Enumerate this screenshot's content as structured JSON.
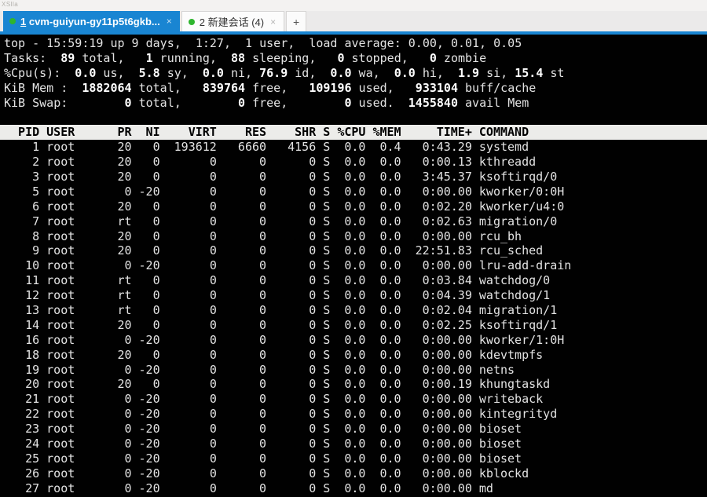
{
  "window": {
    "artifact_text": "XSlla"
  },
  "colors": {
    "tab_active_bg": "#1985d2",
    "accent_strip": "#1985d2",
    "session_status_dot": "#2eb52e",
    "terminal_bg": "#010101",
    "terminal_text": "#e3e3e3",
    "terminal_bold_text": "#ffffff",
    "table_header_bg": "#ececea"
  },
  "tabbar": {
    "tabs": [
      {
        "number": "1",
        "label": "cvm-guiyun-gy11p5t6gkb...",
        "close_icon": "×",
        "active": true
      },
      {
        "number": "2",
        "label": "新建会话 (4)",
        "close_icon": "×",
        "active": false
      }
    ],
    "new_tab_label": "+"
  },
  "terminal": {
    "summary_lines": [
      [
        {
          "t": "top - 15:59:19 up 9 days,  1:27,  1 user,  load average: 0.00, 0.01, 0.05",
          "b": false
        }
      ],
      [
        {
          "t": "Tasks: ",
          "b": false
        },
        {
          "t": " 89",
          "b": true
        },
        {
          "t": " total, ",
          "b": false
        },
        {
          "t": "  1",
          "b": true
        },
        {
          "t": " running, ",
          "b": false
        },
        {
          "t": " 88",
          "b": true
        },
        {
          "t": " sleeping, ",
          "b": false
        },
        {
          "t": "  0",
          "b": true
        },
        {
          "t": " stopped, ",
          "b": false
        },
        {
          "t": "  0",
          "b": true
        },
        {
          "t": " zombie",
          "b": false
        }
      ],
      [
        {
          "t": "%Cpu(s): ",
          "b": false
        },
        {
          "t": " 0.0",
          "b": true
        },
        {
          "t": " us, ",
          "b": false
        },
        {
          "t": " 5.8",
          "b": true
        },
        {
          "t": " sy, ",
          "b": false
        },
        {
          "t": " 0.0",
          "b": true
        },
        {
          "t": " ni, ",
          "b": false
        },
        {
          "t": "76.9",
          "b": true
        },
        {
          "t": " id, ",
          "b": false
        },
        {
          "t": " 0.0",
          "b": true
        },
        {
          "t": " wa, ",
          "b": false
        },
        {
          "t": " 0.0",
          "b": true
        },
        {
          "t": " hi, ",
          "b": false
        },
        {
          "t": " 1.9",
          "b": true
        },
        {
          "t": " si, ",
          "b": false
        },
        {
          "t": "15.4",
          "b": true
        },
        {
          "t": " st",
          "b": false
        }
      ],
      [
        {
          "t": "KiB Mem : ",
          "b": false
        },
        {
          "t": " 1882064",
          "b": true
        },
        {
          "t": " total, ",
          "b": false
        },
        {
          "t": "  839764",
          "b": true
        },
        {
          "t": " free, ",
          "b": false
        },
        {
          "t": "  109196",
          "b": true
        },
        {
          "t": " used, ",
          "b": false
        },
        {
          "t": "  933104",
          "b": true
        },
        {
          "t": " buff/cache",
          "b": false
        }
      ],
      [
        {
          "t": "KiB Swap: ",
          "b": false
        },
        {
          "t": "       0",
          "b": true
        },
        {
          "t": " total, ",
          "b": false
        },
        {
          "t": "       0",
          "b": true
        },
        {
          "t": " free, ",
          "b": false
        },
        {
          "t": "       0",
          "b": true
        },
        {
          "t": " used. ",
          "b": false
        },
        {
          "t": " 1455840",
          "b": true
        },
        {
          "t": " avail Mem",
          "b": false
        }
      ]
    ],
    "columns": [
      "PID",
      "USER",
      "PR",
      "NI",
      "VIRT",
      "RES",
      "SHR",
      "S",
      "%CPU",
      "%MEM",
      "TIME+",
      "COMMAND"
    ],
    "processes": [
      [
        "1",
        "root",
        "20",
        "0",
        "193612",
        "6660",
        "4156",
        "S",
        "0.0",
        "0.4",
        "0:43.29",
        "systemd"
      ],
      [
        "2",
        "root",
        "20",
        "0",
        "0",
        "0",
        "0",
        "S",
        "0.0",
        "0.0",
        "0:00.13",
        "kthreadd"
      ],
      [
        "3",
        "root",
        "20",
        "0",
        "0",
        "0",
        "0",
        "S",
        "0.0",
        "0.0",
        "3:45.37",
        "ksoftirqd/0"
      ],
      [
        "5",
        "root",
        "0",
        "-20",
        "0",
        "0",
        "0",
        "S",
        "0.0",
        "0.0",
        "0:00.00",
        "kworker/0:0H"
      ],
      [
        "6",
        "root",
        "20",
        "0",
        "0",
        "0",
        "0",
        "S",
        "0.0",
        "0.0",
        "0:02.20",
        "kworker/u4:0"
      ],
      [
        "7",
        "root",
        "rt",
        "0",
        "0",
        "0",
        "0",
        "S",
        "0.0",
        "0.0",
        "0:02.63",
        "migration/0"
      ],
      [
        "8",
        "root",
        "20",
        "0",
        "0",
        "0",
        "0",
        "S",
        "0.0",
        "0.0",
        "0:00.00",
        "rcu_bh"
      ],
      [
        "9",
        "root",
        "20",
        "0",
        "0",
        "0",
        "0",
        "S",
        "0.0",
        "0.0",
        "22:51.83",
        "rcu_sched"
      ],
      [
        "10",
        "root",
        "0",
        "-20",
        "0",
        "0",
        "0",
        "S",
        "0.0",
        "0.0",
        "0:00.00",
        "lru-add-drain"
      ],
      [
        "11",
        "root",
        "rt",
        "0",
        "0",
        "0",
        "0",
        "S",
        "0.0",
        "0.0",
        "0:03.84",
        "watchdog/0"
      ],
      [
        "12",
        "root",
        "rt",
        "0",
        "0",
        "0",
        "0",
        "S",
        "0.0",
        "0.0",
        "0:04.39",
        "watchdog/1"
      ],
      [
        "13",
        "root",
        "rt",
        "0",
        "0",
        "0",
        "0",
        "S",
        "0.0",
        "0.0",
        "0:02.04",
        "migration/1"
      ],
      [
        "14",
        "root",
        "20",
        "0",
        "0",
        "0",
        "0",
        "S",
        "0.0",
        "0.0",
        "0:02.25",
        "ksoftirqd/1"
      ],
      [
        "16",
        "root",
        "0",
        "-20",
        "0",
        "0",
        "0",
        "S",
        "0.0",
        "0.0",
        "0:00.00",
        "kworker/1:0H"
      ],
      [
        "18",
        "root",
        "20",
        "0",
        "0",
        "0",
        "0",
        "S",
        "0.0",
        "0.0",
        "0:00.00",
        "kdevtmpfs"
      ],
      [
        "19",
        "root",
        "0",
        "-20",
        "0",
        "0",
        "0",
        "S",
        "0.0",
        "0.0",
        "0:00.00",
        "netns"
      ],
      [
        "20",
        "root",
        "20",
        "0",
        "0",
        "0",
        "0",
        "S",
        "0.0",
        "0.0",
        "0:00.19",
        "khungtaskd"
      ],
      [
        "21",
        "root",
        "0",
        "-20",
        "0",
        "0",
        "0",
        "S",
        "0.0",
        "0.0",
        "0:00.00",
        "writeback"
      ],
      [
        "22",
        "root",
        "0",
        "-20",
        "0",
        "0",
        "0",
        "S",
        "0.0",
        "0.0",
        "0:00.00",
        "kintegrityd"
      ],
      [
        "23",
        "root",
        "0",
        "-20",
        "0",
        "0",
        "0",
        "S",
        "0.0",
        "0.0",
        "0:00.00",
        "bioset"
      ],
      [
        "24",
        "root",
        "0",
        "-20",
        "0",
        "0",
        "0",
        "S",
        "0.0",
        "0.0",
        "0:00.00",
        "bioset"
      ],
      [
        "25",
        "root",
        "0",
        "-20",
        "0",
        "0",
        "0",
        "S",
        "0.0",
        "0.0",
        "0:00.00",
        "bioset"
      ],
      [
        "26",
        "root",
        "0",
        "-20",
        "0",
        "0",
        "0",
        "S",
        "0.0",
        "0.0",
        "0:00.00",
        "kblockd"
      ],
      [
        "27",
        "root",
        "0",
        "-20",
        "0",
        "0",
        "0",
        "S",
        "0.0",
        "0.0",
        "0:00.00",
        "md"
      ]
    ]
  }
}
